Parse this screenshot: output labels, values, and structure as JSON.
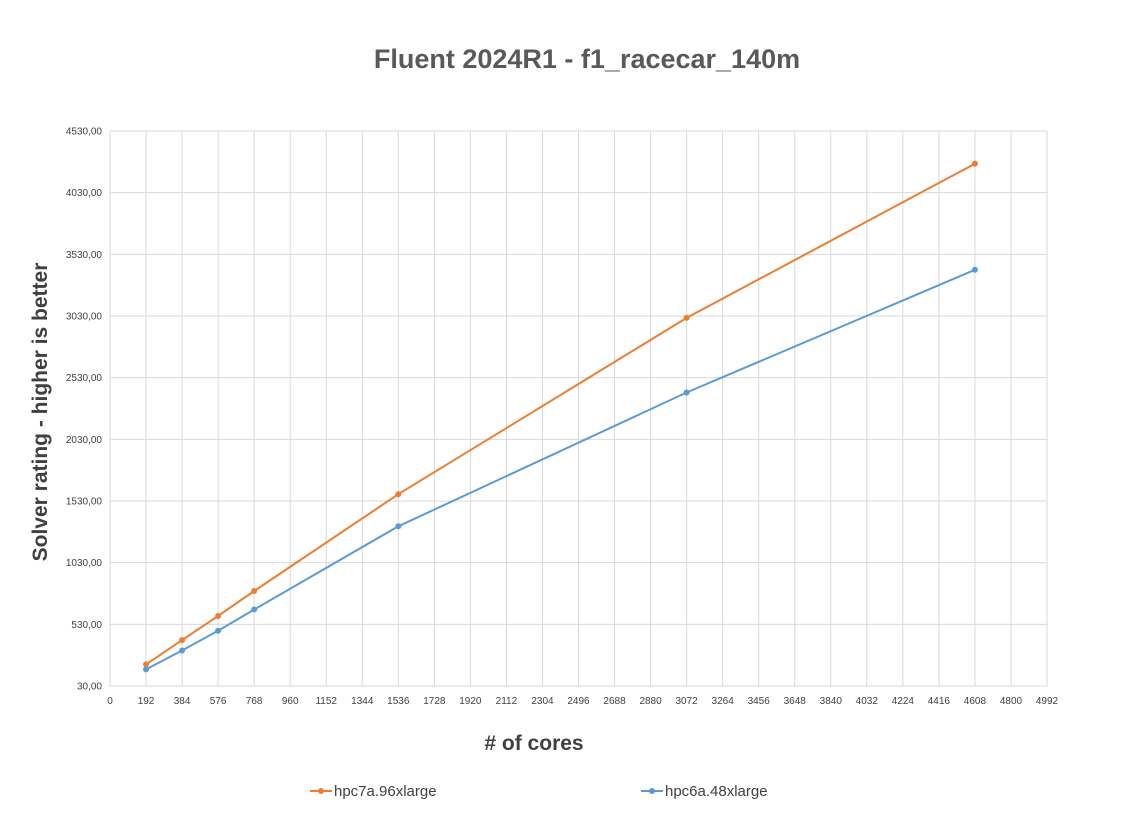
{
  "chart_data": {
    "type": "line",
    "title": "Fluent 2024R1 - f1_racecar_140m",
    "xlabel": "# of cores",
    "ylabel": "Solver rating - higher is better",
    "xlim": [
      0,
      4992
    ],
    "ylim": [
      30,
      4530
    ],
    "x_ticks": [
      "0",
      "192",
      "384",
      "576",
      "768",
      "960",
      "1152",
      "1344",
      "1536",
      "1728",
      "1920",
      "2112",
      "2304",
      "2496",
      "2688",
      "2880",
      "3072",
      "3264",
      "3456",
      "3648",
      "3840",
      "4032",
      "4224",
      "4416",
      "4608",
      "4800",
      "4992"
    ],
    "y_ticks": [
      "30,00",
      "530,00",
      "1030,00",
      "1530,00",
      "2030,00",
      "2530,00",
      "3030,00",
      "3530,00",
      "4030,00",
      "4530,00"
    ],
    "grid": true,
    "legend_position": "bottom",
    "series": [
      {
        "name": "hpc7a.96xlarge",
        "color": "#ed7d31",
        "points": [
          [
            192,
            205
          ],
          [
            384,
            402
          ],
          [
            576,
            598
          ],
          [
            768,
            800
          ],
          [
            1536,
            1585
          ],
          [
            3072,
            3015
          ],
          [
            4608,
            4265
          ]
        ]
      },
      {
        "name": "hpc6a.48xlarge",
        "color": "#5b9bd5",
        "points": [
          [
            192,
            165
          ],
          [
            384,
            318
          ],
          [
            576,
            478
          ],
          [
            768,
            650
          ],
          [
            1536,
            1325
          ],
          [
            3072,
            2410
          ],
          [
            4608,
            3405
          ]
        ]
      }
    ]
  }
}
